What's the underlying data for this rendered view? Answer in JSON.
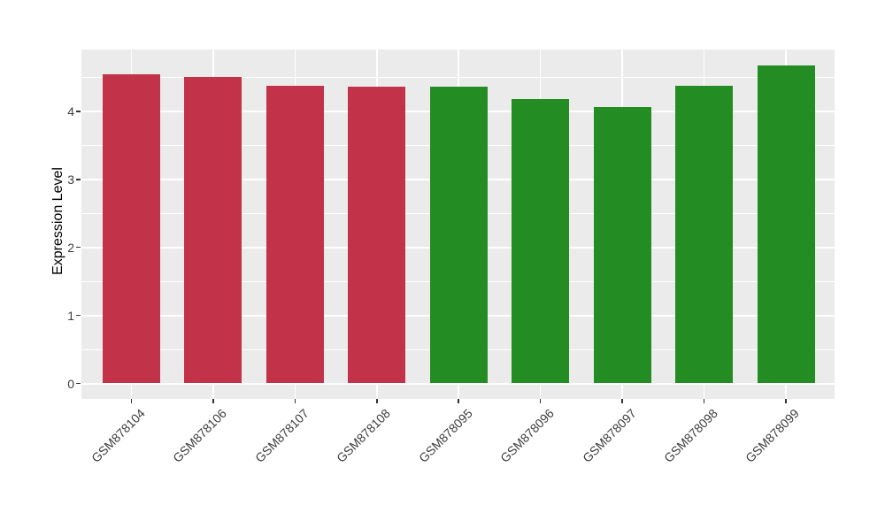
{
  "figure": {
    "background": "#FFFFFF"
  },
  "chart_data": {
    "type": "bar",
    "title": "",
    "xlabel": "",
    "ylabel": "Expression Level",
    "categories": [
      "GSM878104",
      "GSM878106",
      "GSM878107",
      "GSM878108",
      "GSM878095",
      "GSM878096",
      "GSM878097",
      "GSM878098",
      "GSM878099"
    ],
    "values": [
      4.54,
      4.5,
      4.37,
      4.36,
      4.36,
      4.18,
      4.07,
      4.37,
      4.67
    ],
    "bar_colors": [
      "#C23249",
      "#C23249",
      "#C23249",
      "#C23249",
      "#238C22",
      "#238C22",
      "#238C22",
      "#238C22",
      "#238C22"
    ],
    "color_legend": {
      "crimson_group": "#C23249",
      "green_group": "#238C22"
    },
    "yticks": [
      0,
      1,
      2,
      3,
      4
    ],
    "minor_yticks": [
      0.5,
      1.5,
      2.5,
      3.5,
      4.5
    ],
    "ylim": [
      0,
      4.9
    ],
    "grid": true,
    "legend_position": "none",
    "x_label_rotation_deg": 45,
    "panel_bg": "#EBEBEB",
    "grid_color": "#FFFFFF",
    "tick_mark_color": "#333333",
    "tick_text_color": "#3D3D3D",
    "axis_title_color": "#000000"
  }
}
